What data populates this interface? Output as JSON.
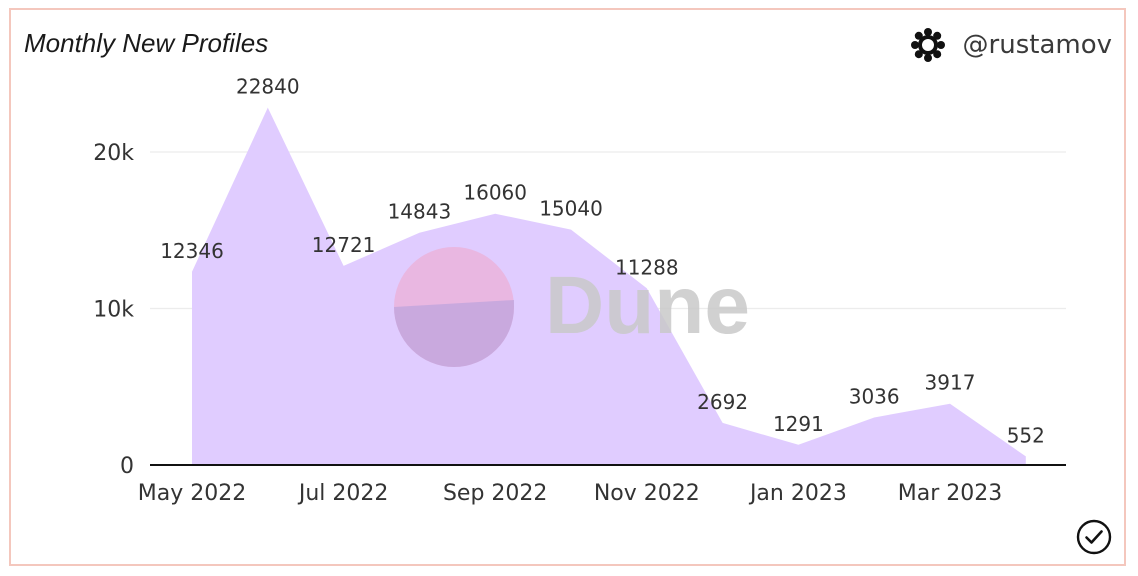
{
  "header": {
    "title": "Monthly New Profiles",
    "author": "@rustamov",
    "author_icon": "dune-logo-icon",
    "status_icon": "check-circle-icon"
  },
  "watermark": {
    "text": "Dune"
  },
  "colors": {
    "area_fill": "#e0ccff",
    "grid": "#ececec",
    "axis": "#111111",
    "label_text": "#333333",
    "watermark_pink": "#f0a6c8",
    "watermark_purple": "#b4a0dc",
    "watermark_text": "#c9c9c9",
    "frame_border": "#f4c7bd"
  },
  "chart_data": {
    "type": "area",
    "title": "Monthly New Profiles",
    "xlabel": "",
    "ylabel": "",
    "x": [
      "2022-05",
      "2022-06",
      "2022-07",
      "2022-08",
      "2022-09",
      "2022-10",
      "2022-11",
      "2022-12",
      "2023-01",
      "2023-02",
      "2023-03",
      "2023-04"
    ],
    "values": [
      12346,
      22840,
      12721,
      14843,
      16060,
      15040,
      11288,
      2692,
      1291,
      3036,
      3917,
      552
    ],
    "data_labels": [
      "12346",
      "22840",
      "12721",
      "14843",
      "16060",
      "15040",
      "11288",
      "2692",
      "1291",
      "3036",
      "3917",
      "552"
    ],
    "x_ticks": [
      "May 2022",
      "Jul 2022",
      "Sep 2022",
      "Nov 2022",
      "Jan 2023",
      "Mar 2023"
    ],
    "x_tick_indices": [
      0,
      2,
      4,
      6,
      8,
      10
    ],
    "y_ticks": [
      0,
      10000,
      20000
    ],
    "y_tick_labels": [
      "0",
      "10k",
      "20k"
    ],
    "ylim": [
      0,
      20000
    ],
    "grid": true,
    "legend": "none"
  }
}
